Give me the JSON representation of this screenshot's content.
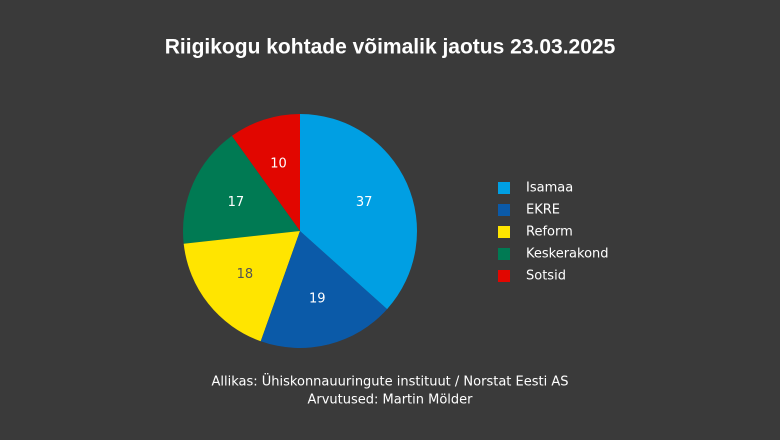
{
  "chart_data": {
    "type": "pie",
    "title": "Riigikogu kohtade võimalik jaotus 23.03.2025",
    "categories": [
      "Isamaa",
      "EKRE",
      "Reform",
      "Keskerakond",
      "Sotsid"
    ],
    "values": [
      37,
      19,
      18,
      17,
      10
    ],
    "colors": [
      "#009fe3",
      "#0b5aa8",
      "#ffe500",
      "#007a53",
      "#e10600"
    ],
    "legend": "right",
    "source": "Allikas: Ühiskonnauuringute instituut / Norstat Eesti AS",
    "credits": "Arvutused: Martin Mölder"
  }
}
